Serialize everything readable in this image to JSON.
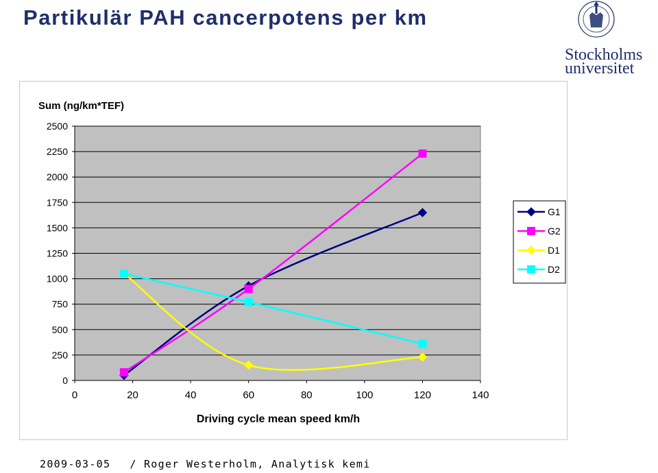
{
  "slide": {
    "title": "Partikulär PAH cancerpotens per km",
    "logo_line1": "Stockholms",
    "logo_line2": "universitet",
    "logo_seal_text": "UNIVERSITET STOCKHOLMS",
    "footer_date": "2009-03-05",
    "footer_author": "/ Roger Westerholm, Analytisk kemi"
  },
  "colors": {
    "title": "#1f2e6b",
    "brand": "#1f2e6b",
    "plot_bg": "#c0c0c0",
    "G1": "#000080",
    "G2": "#ff00ff",
    "D1": "#ffff00",
    "D2": "#00ffff"
  },
  "chart_data": {
    "type": "line",
    "title": "",
    "ylabel": "Sum (ng/km*TEF)",
    "xlabel": "Driving cycle mean speed km/h",
    "xlim": [
      0,
      140
    ],
    "ylim": [
      0,
      2500
    ],
    "xticks": [
      0,
      20,
      40,
      60,
      80,
      100,
      120,
      140
    ],
    "yticks": [
      0,
      250,
      500,
      750,
      1000,
      1250,
      1500,
      1750,
      2000,
      2250,
      2500
    ],
    "grid": true,
    "smooth": true,
    "legend_position": "right",
    "series": [
      {
        "name": "G1",
        "marker": "diamond",
        "color": "#000080",
        "x": [
          17,
          60,
          120
        ],
        "y": [
          50,
          930,
          1650
        ]
      },
      {
        "name": "G2",
        "marker": "square",
        "color": "#ff00ff",
        "x": [
          17,
          60,
          120
        ],
        "y": [
          80,
          900,
          2230
        ]
      },
      {
        "name": "D1",
        "marker": "diamond",
        "color": "#ffff00",
        "x": [
          17,
          60,
          120
        ],
        "y": [
          1050,
          150,
          230
        ]
      },
      {
        "name": "D2",
        "marker": "square",
        "color": "#00ffff",
        "x": [
          17,
          60,
          120
        ],
        "y": [
          1050,
          770,
          360
        ]
      }
    ]
  }
}
